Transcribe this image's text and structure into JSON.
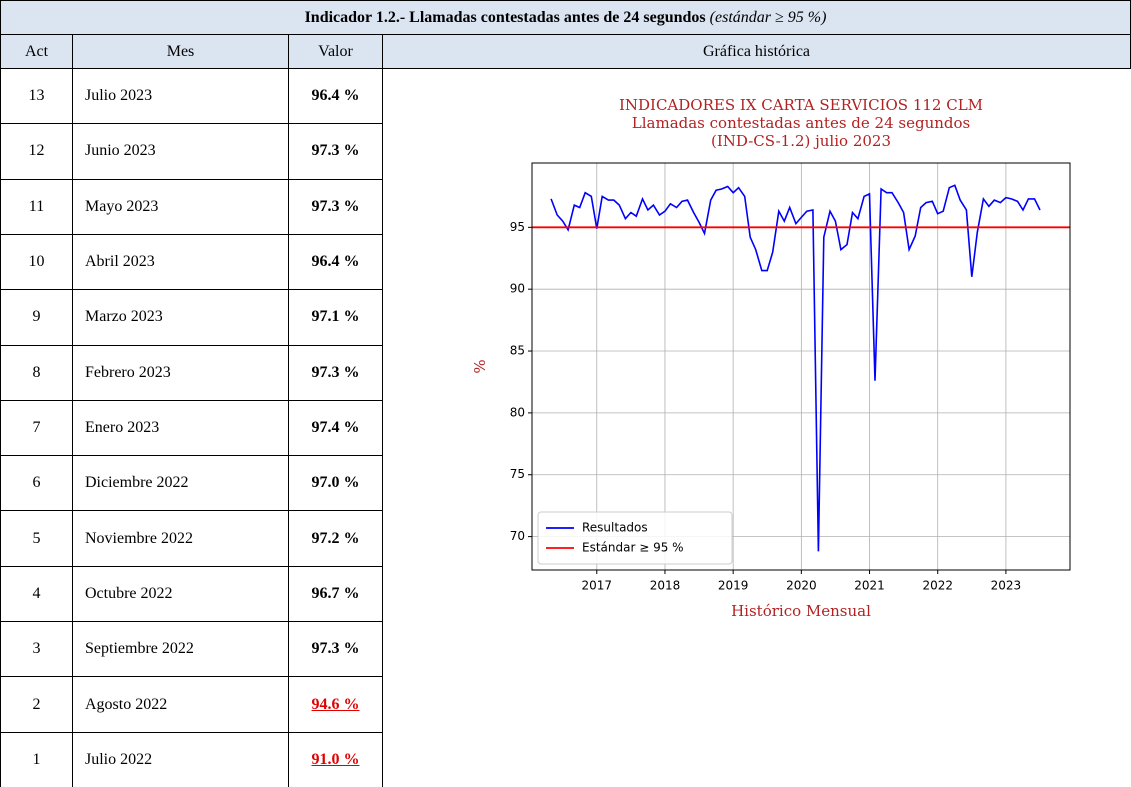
{
  "header": {
    "title": "Indicador 1.2.- Llamadas contestadas antes de 24 segundos",
    "note": "(estándar ≥ 95 %)"
  },
  "table": {
    "columns": [
      "Act",
      "Mes",
      "Valor",
      "Gráfica histórica"
    ],
    "rows": [
      [
        "13",
        "Julio 2023",
        "96.4 %"
      ],
      [
        "12",
        "Junio 2023",
        "97.3 %"
      ],
      [
        "11",
        "Mayo 2023",
        "97.3 %"
      ],
      [
        "10",
        "Abril 2023",
        "96.4 %"
      ],
      [
        "9",
        "Marzo 2023",
        "97.1 %"
      ],
      [
        "8",
        "Febrero 2023",
        "97.3 %"
      ],
      [
        "7",
        "Enero 2023",
        "97.4 %"
      ],
      [
        "6",
        "Diciembre 2022",
        "97.0 %"
      ],
      [
        "5",
        "Noviembre 2022",
        "97.2 %"
      ],
      [
        "4",
        "Octubre 2022",
        "96.7 %"
      ],
      [
        "3",
        "Septiembre 2022",
        "97.3 %"
      ],
      [
        "2",
        "Agosto 2022",
        "94.6 %"
      ],
      [
        "1",
        "Julio 2022",
        "91.0 %"
      ]
    ]
  },
  "chart_data": {
    "type": "line",
    "title": [
      "INDICADORES IX CARTA SERVICIOS 112 CLM",
      "Llamadas contestadas antes de 24 segundos",
      "(IND-CS-1.2) julio 2023"
    ],
    "xlabel": "Histórico Mensual",
    "ylabel": "%",
    "xlim": [
      2016.05,
      2023.94
    ],
    "ylim": [
      67.3,
      100.2
    ],
    "xticks": [
      2017,
      2018,
      2019,
      2020,
      2021,
      2022,
      2023
    ],
    "yticks": [
      70,
      75,
      80,
      85,
      90,
      95
    ],
    "grid": true,
    "legend": "lower left",
    "series": [
      {
        "name": "Resultados",
        "color": "#0000ff",
        "x": [
          2016.33,
          2016.42,
          2016.5,
          2016.58,
          2016.67,
          2016.75,
          2016.83,
          2016.92,
          2017,
          2017.08,
          2017.17,
          2017.25,
          2017.33,
          2017.42,
          2017.5,
          2017.58,
          2017.67,
          2017.75,
          2017.83,
          2017.92,
          2018,
          2018.08,
          2018.17,
          2018.25,
          2018.33,
          2018.42,
          2018.5,
          2018.58,
          2018.67,
          2018.75,
          2018.83,
          2018.92,
          2019,
          2019.08,
          2019.17,
          2019.25,
          2019.33,
          2019.42,
          2019.5,
          2019.58,
          2019.67,
          2019.75,
          2019.83,
          2019.92,
          2020,
          2020.08,
          2020.17,
          2020.25,
          2020.33,
          2020.42,
          2020.5,
          2020.58,
          2020.67,
          2020.75,
          2020.83,
          2020.92,
          2021,
          2021.08,
          2021.17,
          2021.25,
          2021.33,
          2021.42,
          2021.5,
          2021.58,
          2021.67,
          2021.75,
          2021.83,
          2021.92,
          2022,
          2022.08,
          2022.17,
          2022.25,
          2022.33,
          2022.42,
          2022.5,
          2022.58,
          2022.67,
          2022.75,
          2022.83,
          2022.92,
          2023,
          2023.08,
          2023.17,
          2023.25,
          2023.33,
          2023.42,
          2023.5
        ],
        "values": [
          97.3,
          96.0,
          95.5,
          94.8,
          96.8,
          96.6,
          97.8,
          97.5,
          94.9,
          97.5,
          97.2,
          97.2,
          96.8,
          95.7,
          96.2,
          95.9,
          97.3,
          96.4,
          96.8,
          96.0,
          96.3,
          96.9,
          96.6,
          97.1,
          97.2,
          96.2,
          95.4,
          94.5,
          97.2,
          98.0,
          98.1,
          98.3,
          97.8,
          98.2,
          97.5,
          94.2,
          93.2,
          91.5,
          91.5,
          93.0,
          96.3,
          95.5,
          96.6,
          95.3,
          95.8,
          96.3,
          96.4,
          68.8,
          94.2,
          96.3,
          95.5,
          93.2,
          93.6,
          96.2,
          95.7,
          97.5,
          97.7,
          82.6,
          98.1,
          97.8,
          97.8,
          97.0,
          96.2,
          93.2,
          94.3,
          96.6,
          97.0,
          97.1,
          96.1,
          96.3,
          98.2,
          98.4,
          97.2,
          96.4,
          91.0,
          94.6,
          97.3,
          96.7,
          97.2,
          97.0,
          97.4,
          97.3,
          97.1,
          96.4,
          97.3,
          97.3,
          96.4
        ]
      }
    ],
    "reference": {
      "name": "Estándar ≥ 95 %",
      "color": "#ff0000",
      "value": 95
    }
  }
}
